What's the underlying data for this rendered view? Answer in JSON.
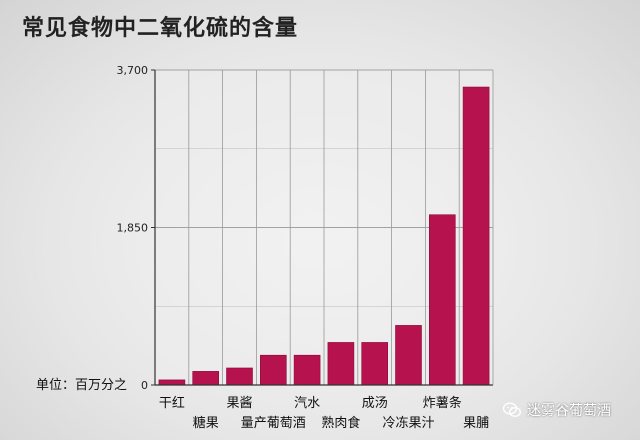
{
  "title": "常见食物中二氧化硫的含量",
  "watermark": "迷雾谷葡萄酒",
  "colors": {
    "bar": "#b5124e",
    "bar_edge": "#8a0c3a",
    "grid": "#9a9a9a",
    "axis": "#333333"
  },
  "chart_data": {
    "type": "bar",
    "title": "常见食物中二氧化硫的含量",
    "categories": [
      "干红",
      "糖果",
      "果酱",
      "量产葡萄酒",
      "汽水",
      "熟肉食",
      "成汤",
      "冷冻果汁",
      "炸薯条",
      "果脯"
    ],
    "values": [
      60,
      160,
      200,
      350,
      350,
      500,
      500,
      700,
      2000,
      3500
    ],
    "ylim": [
      0,
      3700
    ],
    "yticks": [
      "0",
      "1,850",
      "3,700"
    ],
    "ytick_values": [
      0,
      1850,
      3700
    ],
    "ylabel": "",
    "xlabel": "",
    "unit_label": "单位：百万分之",
    "grid": true,
    "legend": "none"
  }
}
